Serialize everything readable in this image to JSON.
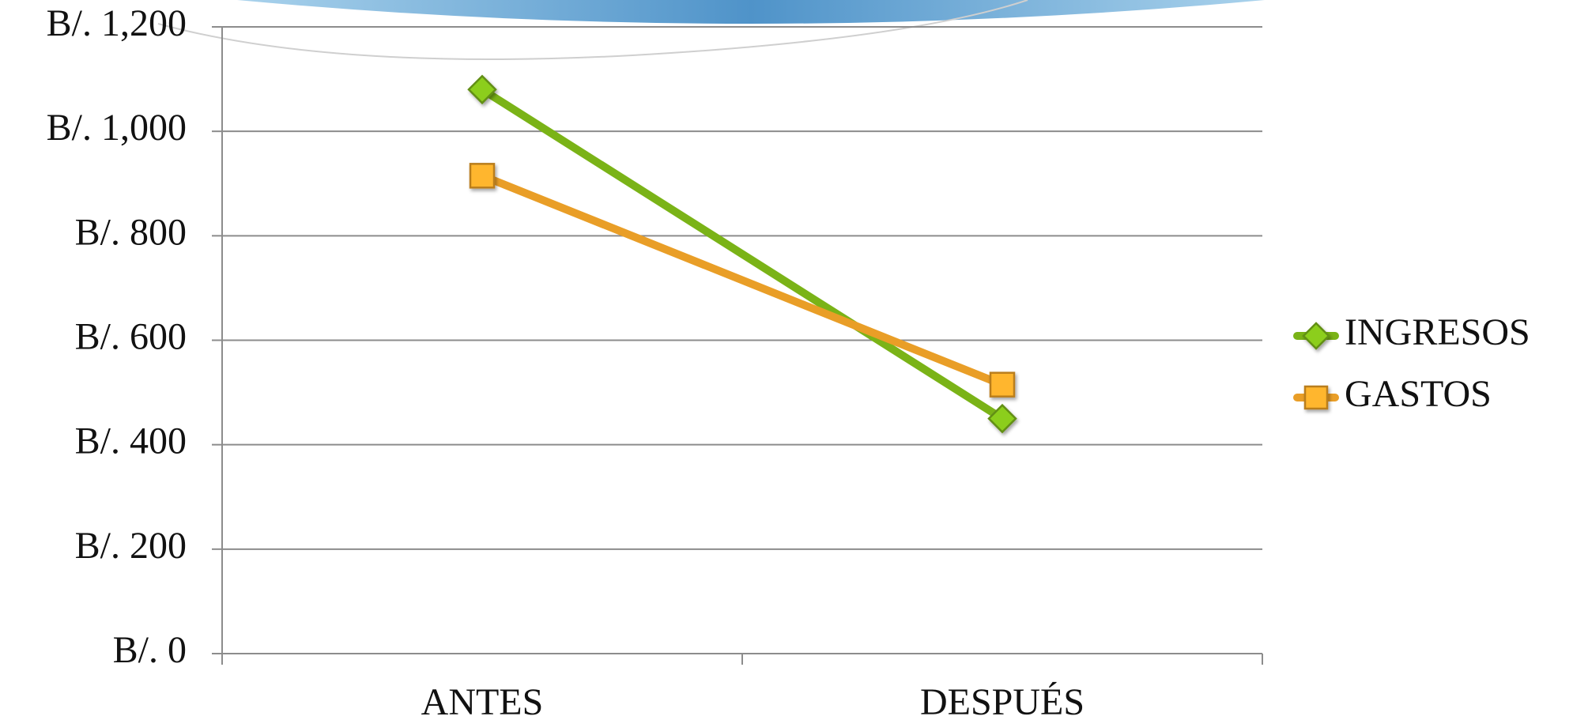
{
  "chart_data": {
    "type": "line",
    "categories": [
      "ANTES",
      "DESPUÉS"
    ],
    "series": [
      {
        "name": "INGRESOS",
        "color": "#7ab317",
        "marker": "diamond",
        "values": [
          1080,
          450
        ]
      },
      {
        "name": "GASTOS",
        "color": "#e99e27",
        "marker": "square",
        "values": [
          915,
          515
        ]
      }
    ],
    "ylim": [
      0,
      1200
    ],
    "yticks": [
      {
        "value": 0,
        "label": "B/. 0"
      },
      {
        "value": 200,
        "label": "B/. 200"
      },
      {
        "value": 400,
        "label": "B/. 400"
      },
      {
        "value": 600,
        "label": "B/. 600"
      },
      {
        "value": 800,
        "label": "B/. 800"
      },
      {
        "value": 1000,
        "label": "B/. 1,000"
      },
      {
        "value": 1200,
        "label": "B/. 1,200"
      }
    ],
    "grid": true,
    "legend": "right"
  }
}
